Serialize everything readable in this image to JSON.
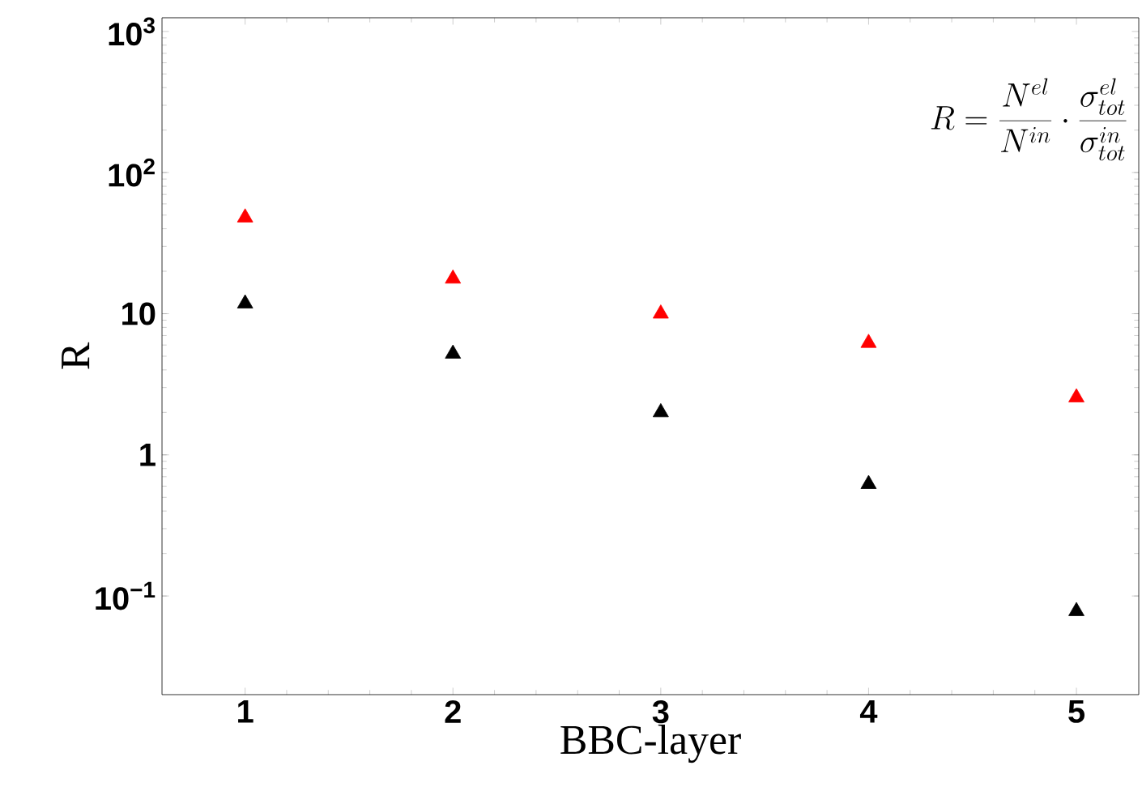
{
  "chart_data": {
    "type": "scatter",
    "xlabel": "BBC-layer",
    "ylabel": "R",
    "log": "y",
    "marker": "triangle",
    "annotations": [
      "R = \\frac{N^{el}}{N^{in}} \\cdot \\frac{\\sigma_{tot}^{el}}{\\sigma_{tot}^{in}}"
    ],
    "xlim": [
      0.6,
      5.3
    ],
    "xticks": [
      1,
      2,
      3,
      4,
      5
    ],
    "ylim": [
      0.02,
      1250
    ],
    "yticks": [
      {
        "value": 0.1,
        "label": "10$^{−1}$"
      },
      1,
      10,
      {
        "value": 100,
        "label": "10$^{2}$"
      },
      {
        "value": 1000,
        "label": "10$^{3}$"
      }
    ],
    "x": [
      1,
      2,
      3,
      4,
      5
    ],
    "series": [
      {
        "color": "#ff0000",
        "values": [
          48,
          17.7,
          10,
          6.2,
          2.55
        ]
      },
      {
        "color": "#000000",
        "values": [
          11.8,
          5.2,
          2.0,
          0.62,
          0.078
        ]
      }
    ]
  }
}
